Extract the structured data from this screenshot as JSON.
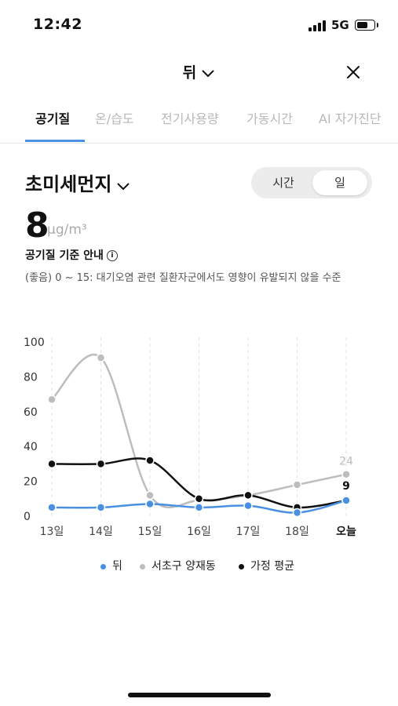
{
  "status_bar": {
    "time": "12:42",
    "network": "5G"
  },
  "header": {
    "title": "뒤"
  },
  "tabs": [
    {
      "label": "공기질",
      "active": true
    },
    {
      "label": "온/습도",
      "active": false
    },
    {
      "label": "전기사용량",
      "active": false
    },
    {
      "label": "가동시간",
      "active": false
    },
    {
      "label": "AI 자가진단",
      "active": false
    }
  ],
  "metric": {
    "name": "초미세먼지",
    "value": "8",
    "unit": "μg/m³"
  },
  "toggle": {
    "options": [
      "시간",
      "일"
    ],
    "selected": "일"
  },
  "guide": {
    "label": "공기질 기준 안내",
    "description": "(좋음) 0 ~ 15: 대기오염 관련 질환자군에서도 영향이 유발되지 않을 수준"
  },
  "colors": {
    "accent": "#4a90e2",
    "series_home": "#4a90e2",
    "series_region": "#bdbdbd",
    "series_avg": "#111111"
  },
  "chart_data": {
    "type": "line",
    "categories": [
      "13일",
      "14일",
      "15일",
      "16일",
      "17일",
      "18일",
      "오늘"
    ],
    "y_ticks": [
      "100",
      "80",
      "60",
      "40",
      "20",
      "0"
    ],
    "ylim": [
      0,
      100
    ],
    "grid": "vertical dashed",
    "legend_position": "bottom",
    "series": [
      {
        "name": "뒤",
        "color": "#4a90e2",
        "values": [
          5,
          5,
          7,
          5,
          6,
          2,
          9
        ]
      },
      {
        "name": "서초구 양재동",
        "color": "#bdbdbd",
        "values": [
          67,
          91,
          12,
          9,
          12,
          18,
          24
        ]
      },
      {
        "name": "가정 평균",
        "color": "#111111",
        "values": [
          30,
          30,
          32,
          10,
          12,
          5,
          9
        ]
      }
    ],
    "end_labels": [
      "24",
      "9"
    ]
  }
}
